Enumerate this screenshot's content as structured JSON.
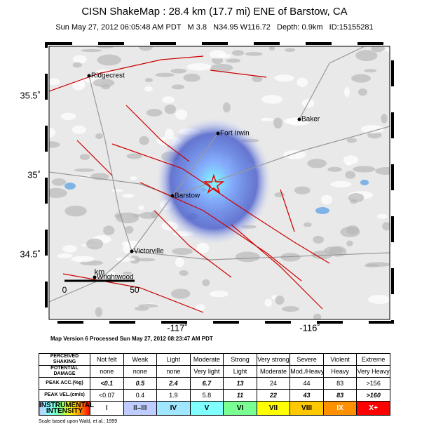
{
  "header": {
    "title": "CISN ShakeMap : 28.4 km (17.7 mi) ENE of Barstow, CA",
    "subtitle": "Sun May 27, 2012 06:05:48 AM PDT   M 3.8   N34.95 W116.72   Depth: 0.9km   ID:15155281"
  },
  "map": {
    "lat_labels": [
      "35.5˚",
      "35˚",
      "34.5˚"
    ],
    "lon_labels": [
      "-117˚",
      "-116˚"
    ],
    "cities": [
      "Ridgecrest",
      "Fort Irwin",
      "Baker",
      "Barstow",
      "Victorville",
      "Wrightwood"
    ],
    "scale": {
      "start": "0",
      "unit": "km",
      "end": "50"
    },
    "version": "Map Version 6 Processed Sun May 27, 2012 08:23:47 AM PDT"
  },
  "legend": {
    "rows": [
      {
        "label": "PERCEIVED SHAKING",
        "cells": [
          "Not felt",
          "Weak",
          "Light",
          "Moderate",
          "Strong",
          "Very strong",
          "Severe",
          "Violent",
          "Extreme"
        ]
      },
      {
        "label": "POTENTIAL DAMAGE",
        "cells": [
          "none",
          "none",
          "none",
          "Very light",
          "Light",
          "Moderate",
          "Mod./Heavy",
          "Heavy",
          "Very Heavy"
        ]
      },
      {
        "label": "PEAK ACC.(%g)",
        "cells": [
          "<0.1",
          "0.5",
          "2.4",
          "6.7",
          "13",
          "24",
          "44",
          "83",
          ">156"
        ]
      },
      {
        "label": "PEAK VEL.(cm/s)",
        "cells": [
          "<0.07",
          "0.4",
          "1.9",
          "5.8",
          "11",
          "22",
          "43",
          "83",
          ">160"
        ]
      },
      {
        "label": "INSTRUMENTAL INTENSITY",
        "cells": [
          "I",
          "II–III",
          "IV",
          "V",
          "VI",
          "VII",
          "VIII",
          "IX",
          "X+"
        ]
      }
    ],
    "note": "Scale based upon Wald, et al.; 1999"
  }
}
